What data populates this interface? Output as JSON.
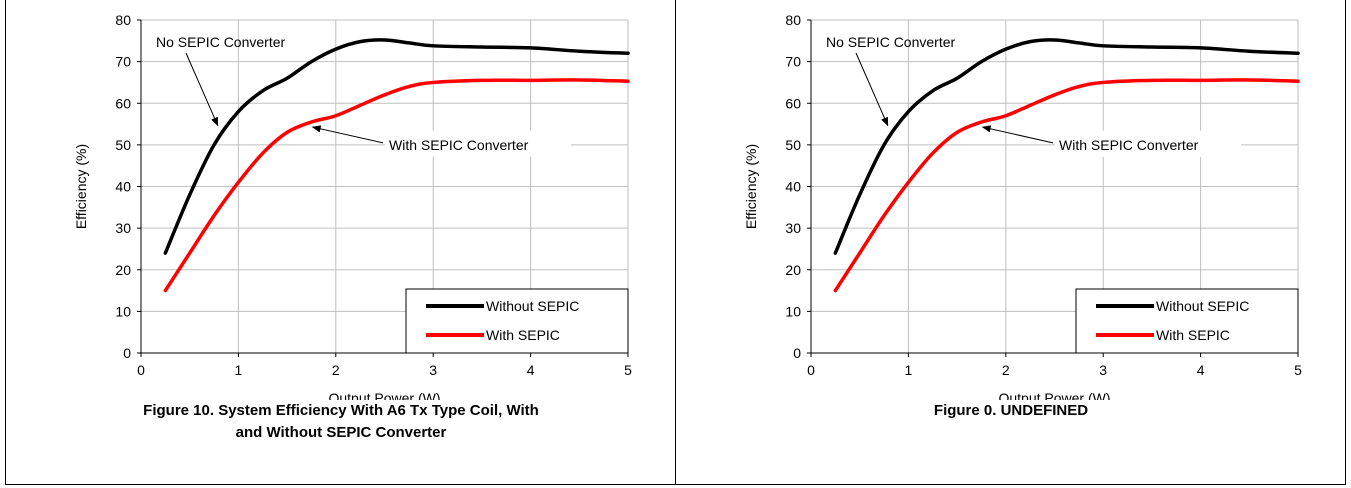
{
  "panels": [
    {
      "caption_lines": [
        "Figure 10. System Efficiency With A6 Tx Type Coil, With",
        "and Without SEPIC Converter"
      ]
    },
    {
      "caption_lines": [
        "Figure 0. UNDEFINED",
        ""
      ]
    }
  ],
  "chart_data": [
    {
      "type": "line",
      "title": "",
      "xlabel": "Output Power (W)",
      "ylabel": "Efficiency (%)",
      "xlim": [
        0,
        5
      ],
      "ylim": [
        0,
        80
      ],
      "xticks": [
        "0",
        "1",
        "2",
        "3",
        "4",
        "5"
      ],
      "yticks": [
        "0",
        "10",
        "20",
        "30",
        "40",
        "50",
        "60",
        "70",
        "80"
      ],
      "grid": true,
      "legend_position": "bottom-right",
      "series": [
        {
          "name": "Without SEPIC",
          "color": "#000000",
          "x": [
            0.25,
            0.5,
            0.75,
            1.0,
            1.25,
            1.5,
            1.75,
            2.0,
            2.25,
            2.5,
            2.75,
            3.0,
            3.5,
            4.0,
            4.5,
            5.0
          ],
          "y": [
            24,
            38,
            50,
            58,
            63,
            66,
            70,
            73,
            74.8,
            75.2,
            74.5,
            73.8,
            73.5,
            73.3,
            72.5,
            72.0
          ]
        },
        {
          "name": "With SEPIC",
          "color": "#ff0000",
          "x": [
            0.25,
            0.5,
            0.75,
            1.0,
            1.25,
            1.5,
            1.75,
            2.0,
            2.25,
            2.5,
            2.75,
            3.0,
            3.5,
            4.0,
            4.5,
            5.0
          ],
          "y": [
            15,
            24,
            33,
            41,
            48,
            53,
            55.5,
            57,
            59.5,
            62,
            64,
            65,
            65.5,
            65.5,
            65.6,
            65.3
          ]
        }
      ],
      "annotations": [
        {
          "text": "No SEPIC Converter",
          "target_series": 0
        },
        {
          "text": "With SEPIC Converter",
          "target_series": 1
        }
      ]
    },
    {
      "type": "line",
      "title": "",
      "xlabel": "Output Power (W)",
      "ylabel": "Efficiency (%)",
      "xlim": [
        0,
        5
      ],
      "ylim": [
        0,
        80
      ],
      "xticks": [
        "0",
        "1",
        "2",
        "3",
        "4",
        "5"
      ],
      "yticks": [
        "0",
        "10",
        "20",
        "30",
        "40",
        "50",
        "60",
        "70",
        "80"
      ],
      "grid": true,
      "legend_position": "bottom-right",
      "series": [
        {
          "name": "Without SEPIC",
          "color": "#000000",
          "x": [
            0.25,
            0.5,
            0.75,
            1.0,
            1.25,
            1.5,
            1.75,
            2.0,
            2.25,
            2.5,
            2.75,
            3.0,
            3.5,
            4.0,
            4.5,
            5.0
          ],
          "y": [
            24,
            38,
            50,
            58,
            63,
            66,
            70,
            73,
            74.8,
            75.2,
            74.5,
            73.8,
            73.5,
            73.3,
            72.5,
            72.0
          ]
        },
        {
          "name": "With SEPIC",
          "color": "#ff0000",
          "x": [
            0.25,
            0.5,
            0.75,
            1.0,
            1.25,
            1.5,
            1.75,
            2.0,
            2.25,
            2.5,
            2.75,
            3.0,
            3.5,
            4.0,
            4.5,
            5.0
          ],
          "y": [
            15,
            24,
            33,
            41,
            48,
            53,
            55.5,
            57,
            59.5,
            62,
            64,
            65,
            65.5,
            65.5,
            65.6,
            65.3
          ]
        }
      ],
      "annotations": [
        {
          "text": "No SEPIC Converter",
          "target_series": 0
        },
        {
          "text": "With SEPIC Converter",
          "target_series": 1
        }
      ]
    }
  ]
}
